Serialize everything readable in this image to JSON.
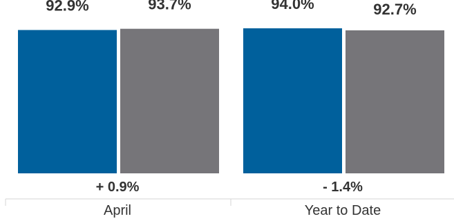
{
  "chart_data": {
    "type": "bar",
    "categories": [
      "April",
      "Year to Date"
    ],
    "series": [
      {
        "values": [
          92.9,
          94.0
        ],
        "color": "#00609c"
      },
      {
        "values": [
          93.7,
          92.7
        ],
        "color": "#767579"
      }
    ],
    "value_labels": [
      [
        "92.9%",
        "94.0%"
      ],
      [
        "93.7%",
        "92.7%"
      ]
    ],
    "change_labels": [
      "+ 0.9%",
      "- 1.4%"
    ]
  }
}
